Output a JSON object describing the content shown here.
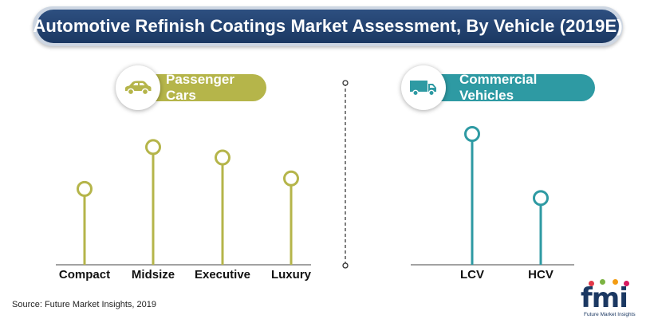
{
  "title": "Automotive Refinish Coatings Market Assessment, By Vehicle (2019E)",
  "source": "Source: Future Market Insights, 2019",
  "colors": {
    "passenger": "#b5b54a",
    "commercial": "#2e9aa3",
    "title_bg": "#1b3862"
  },
  "icons": {
    "passenger": "car-icon",
    "commercial": "truck-icon"
  },
  "logo": {
    "text": "fmi",
    "subtitle": "Future Market Insights"
  },
  "chart_data": [
    {
      "type": "lollipop",
      "title": "Passenger Cars",
      "categories": [
        "Compact",
        "Midsize",
        "Executive",
        "Luxury"
      ],
      "values": [
        58,
        90,
        82,
        66
      ],
      "ylim": [
        0,
        100
      ],
      "grid": false
    },
    {
      "type": "lollipop",
      "title": "Commercial Vehicles",
      "categories": [
        "LCV",
        "HCV"
      ],
      "values": [
        100,
        51
      ],
      "ylim": [
        0,
        100
      ],
      "grid": false
    }
  ]
}
